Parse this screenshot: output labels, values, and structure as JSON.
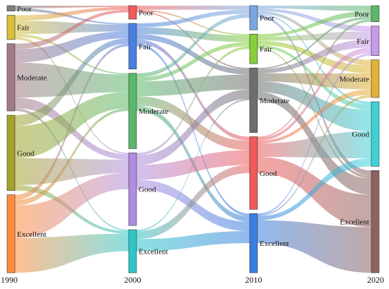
{
  "chart_data": {
    "type": "sankey",
    "title": "",
    "axis_labels": [
      "1990",
      "2000",
      "2010",
      "2020"
    ],
    "categories": [
      "Poor",
      "Fair",
      "Moderate",
      "Good",
      "Excellent"
    ],
    "node_colors": {
      "1990": {
        "Poor": "#7f7f7f",
        "Fair": "#d9c03b",
        "Moderate": "#a07b86",
        "Good": "#a5a32c",
        "Excellent": "#ff8c3a"
      },
      "2000": {
        "Poor": "#f05a5a",
        "Fair": "#4a7fe0",
        "Moderate": "#5bb86a",
        "Good": "#b08de0",
        "Excellent": "#2ec6c6"
      },
      "2010": {
        "Poor": "#7aa6e0",
        "Fair": "#86cf3a",
        "Moderate": "#6e6e6e",
        "Good": "#f05a5a",
        "Excellent": "#3a7fe0"
      },
      "2020": {
        "Poor": "#5bb86a",
        "Fair": "#c79be8",
        "Moderate": "#e2b236",
        "Good": "#3ed2d8",
        "Excellent": "#8e6262"
      }
    },
    "flows": [
      {
        "from": "1990",
        "to": "2000",
        "links": [
          {
            "source": "Poor",
            "target": "Poor",
            "value": 1
          },
          {
            "source": "Poor",
            "target": "Fair",
            "value": 1
          },
          {
            "source": "Fair",
            "target": "Poor",
            "value": 2
          },
          {
            "source": "Fair",
            "target": "Fair",
            "value": 5
          },
          {
            "source": "Fair",
            "target": "Moderate",
            "value": 1
          },
          {
            "source": "Fair",
            "target": "Good",
            "value": 1
          },
          {
            "source": "Moderate",
            "target": "Poor",
            "value": 2
          },
          {
            "source": "Moderate",
            "target": "Fair",
            "value": 5
          },
          {
            "source": "Moderate",
            "target": "Moderate",
            "value": 13
          },
          {
            "source": "Moderate",
            "target": "Good",
            "value": 4
          },
          {
            "source": "Moderate",
            "target": "Excellent",
            "value": 1
          },
          {
            "source": "Good",
            "target": "Fair",
            "value": 4
          },
          {
            "source": "Good",
            "target": "Moderate",
            "value": 12
          },
          {
            "source": "Good",
            "target": "Good",
            "value": 10
          },
          {
            "source": "Good",
            "target": "Excellent",
            "value": 2
          },
          {
            "source": "Excellent",
            "target": "Fair",
            "value": 2
          },
          {
            "source": "Excellent",
            "target": "Moderate",
            "value": 2
          },
          {
            "source": "Excellent",
            "target": "Good",
            "value": 12
          },
          {
            "source": "Excellent",
            "target": "Excellent",
            "value": 13
          }
        ]
      },
      {
        "from": "2000",
        "to": "2010",
        "links": [
          {
            "source": "Poor",
            "target": "Poor",
            "value": 3
          },
          {
            "source": "Poor",
            "target": "Fair",
            "value": 1
          },
          {
            "source": "Poor",
            "target": "Moderate",
            "value": 1
          },
          {
            "source": "Fair",
            "target": "Poor",
            "value": 3
          },
          {
            "source": "Fair",
            "target": "Fair",
            "value": 5
          },
          {
            "source": "Fair",
            "target": "Moderate",
            "value": 4
          },
          {
            "source": "Fair",
            "target": "Good",
            "value": 3
          },
          {
            "source": "Fair",
            "target": "Excellent",
            "value": 2
          },
          {
            "source": "Moderate",
            "target": "Poor",
            "value": 3
          },
          {
            "source": "Moderate",
            "target": "Fair",
            "value": 3
          },
          {
            "source": "Moderate",
            "target": "Moderate",
            "value": 11
          },
          {
            "source": "Moderate",
            "target": "Good",
            "value": 7
          },
          {
            "source": "Moderate",
            "target": "Excellent",
            "value": 4
          },
          {
            "source": "Good",
            "target": "Fair",
            "value": 2
          },
          {
            "source": "Good",
            "target": "Moderate",
            "value": 7
          },
          {
            "source": "Good",
            "target": "Good",
            "value": 11
          },
          {
            "source": "Good",
            "target": "Excellent",
            "value": 7
          },
          {
            "source": "Excellent",
            "target": "Moderate",
            "value": 1
          },
          {
            "source": "Excellent",
            "target": "Good",
            "value": 6
          },
          {
            "source": "Excellent",
            "target": "Excellent",
            "value": 9
          }
        ]
      },
      {
        "from": "2010",
        "to": "2020",
        "links": [
          {
            "source": "Poor",
            "target": "Poor",
            "value": 2
          },
          {
            "source": "Poor",
            "target": "Fair",
            "value": 2
          },
          {
            "source": "Poor",
            "target": "Moderate",
            "value": 2
          },
          {
            "source": "Poor",
            "target": "Good",
            "value": 1
          },
          {
            "source": "Poor",
            "target": "Excellent",
            "value": 2
          },
          {
            "source": "Fair",
            "target": "Poor",
            "value": 2
          },
          {
            "source": "Fair",
            "target": "Fair",
            "value": 3
          },
          {
            "source": "Fair",
            "target": "Moderate",
            "value": 3
          },
          {
            "source": "Fair",
            "target": "Good",
            "value": 2
          },
          {
            "source": "Fair",
            "target": "Excellent",
            "value": 1
          },
          {
            "source": "Moderate",
            "target": "Poor",
            "value": 1
          },
          {
            "source": "Moderate",
            "target": "Fair",
            "value": 3
          },
          {
            "source": "Moderate",
            "target": "Moderate",
            "value": 6
          },
          {
            "source": "Moderate",
            "target": "Good",
            "value": 8
          },
          {
            "source": "Moderate",
            "target": "Excellent",
            "value": 6
          },
          {
            "source": "Good",
            "target": "Poor",
            "value": 1
          },
          {
            "source": "Good",
            "target": "Fair",
            "value": 2
          },
          {
            "source": "Good",
            "target": "Moderate",
            "value": 2
          },
          {
            "source": "Good",
            "target": "Good",
            "value": 10
          },
          {
            "source": "Good",
            "target": "Excellent",
            "value": 12
          },
          {
            "source": "Excellent",
            "target": "Fair",
            "value": 1
          },
          {
            "source": "Excellent",
            "target": "Moderate",
            "value": 1
          },
          {
            "source": "Excellent",
            "target": "Good",
            "value": 3
          },
          {
            "source": "Excellent",
            "target": "Excellent",
            "value": 17
          }
        ]
      }
    ],
    "grid": false,
    "legend": "none"
  }
}
